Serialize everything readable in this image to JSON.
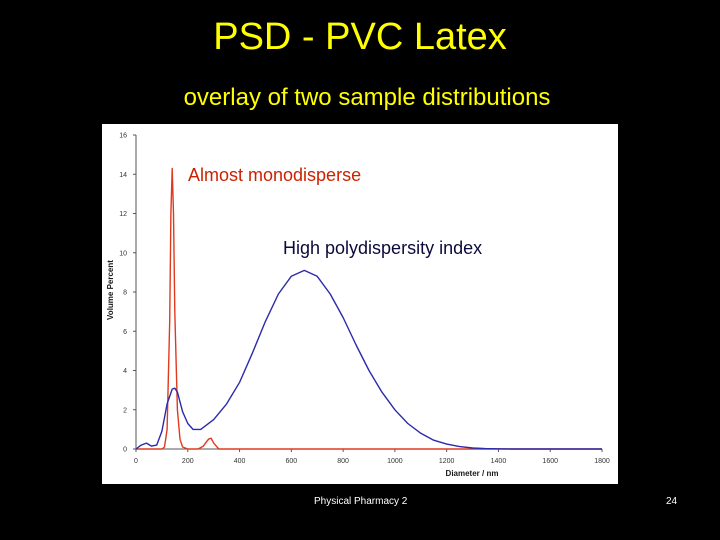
{
  "slide": {
    "title": "PSD - PVC Latex",
    "subtitle": "overlay of two sample distributions",
    "footer_text": "Physical Pharmacy 2",
    "page_number": "24"
  },
  "chart_data": {
    "type": "line",
    "xlabel": "Diameter / nm",
    "ylabel": "Volume Percent",
    "xlim": [
      0,
      1800
    ],
    "ylim": [
      0,
      16
    ],
    "xticks": [
      0,
      200,
      400,
      600,
      800,
      1000,
      1200,
      1400,
      1600,
      1800
    ],
    "yticks": [
      0,
      2,
      4,
      6,
      8,
      10,
      12,
      14,
      16
    ],
    "grid": false,
    "legend": "none",
    "annotations": [
      {
        "text": "Almost monodisperse",
        "color": "#cc2200"
      },
      {
        "text": "High polydispersity index",
        "color": "#0a0a3c"
      }
    ],
    "series": [
      {
        "color": "#e03a1e",
        "x": [
          0,
          100,
          110,
          120,
          130,
          135,
          140,
          145,
          150,
          160,
          170,
          180,
          200,
          240,
          260,
          280,
          290,
          300,
          320,
          350,
          1800
        ],
        "y": [
          0,
          0,
          0.1,
          1.0,
          6.5,
          12.0,
          14.3,
          12.0,
          7.0,
          2.0,
          0.5,
          0.1,
          0,
          0,
          0.15,
          0.5,
          0.55,
          0.3,
          0,
          0,
          0
        ]
      },
      {
        "color": "#2b2bab",
        "x": [
          0,
          20,
          40,
          60,
          80,
          100,
          120,
          140,
          150,
          160,
          180,
          200,
          220,
          250,
          300,
          350,
          400,
          450,
          500,
          550,
          600,
          650,
          700,
          750,
          800,
          850,
          900,
          950,
          1000,
          1050,
          1100,
          1150,
          1200,
          1250,
          1300,
          1350,
          1400,
          1450,
          1500,
          1800
        ],
        "y": [
          0,
          0.2,
          0.3,
          0.15,
          0.2,
          0.9,
          2.3,
          3.05,
          3.1,
          2.9,
          1.9,
          1.3,
          1.0,
          1.0,
          1.5,
          2.3,
          3.4,
          4.9,
          6.5,
          7.9,
          8.8,
          9.1,
          8.8,
          7.9,
          6.7,
          5.3,
          4.0,
          2.9,
          2.0,
          1.3,
          0.8,
          0.45,
          0.25,
          0.12,
          0.05,
          0.02,
          0.01,
          0,
          0,
          0
        ]
      }
    ]
  }
}
